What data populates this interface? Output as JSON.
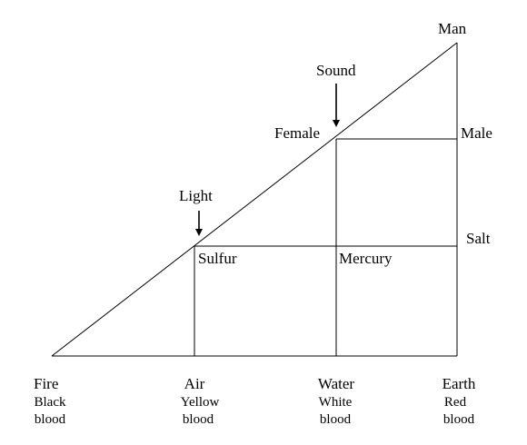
{
  "vertices": {
    "man": "Man",
    "male": "Male",
    "salt": "Salt",
    "female": "Female",
    "sound": "Sound",
    "light": "Light",
    "sulfur": "Sulfur",
    "mercury": "Mercury"
  },
  "base": [
    {
      "element": "Fire",
      "color": "Black",
      "fluid": "blood"
    },
    {
      "element": "Air",
      "color": "Yellow",
      "fluid": "blood"
    },
    {
      "element": "Water",
      "color": "White",
      "fluid": "blood"
    },
    {
      "element": "Earth",
      "color": "Red",
      "fluid": "blood"
    }
  ]
}
